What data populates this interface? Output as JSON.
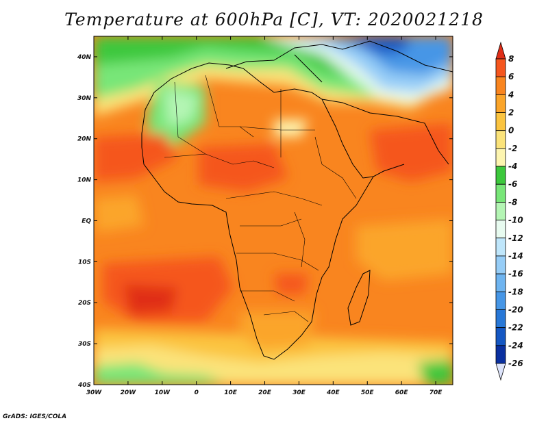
{
  "title": "Temperature at 600hPa [C], VT: 2020021218",
  "credit": "GrADS: IGES/COLA",
  "map": {
    "lon_labels": [
      "30W",
      "20W",
      "10W",
      "0",
      "10E",
      "20E",
      "30E",
      "40E",
      "50E",
      "60E",
      "70E"
    ],
    "lat_labels": [
      "40N",
      "30N",
      "20N",
      "10N",
      "EQ",
      "10S",
      "20S",
      "30S",
      "40S"
    ],
    "lon_range": [
      -30,
      75
    ],
    "lat_range": [
      -40,
      45
    ]
  },
  "colorbar": {
    "labels": [
      "8",
      "6",
      "4",
      "2",
      "0",
      "-2",
      "-4",
      "-6",
      "-8",
      "-10",
      "-12",
      "-14",
      "-16",
      "-18",
      "-20",
      "-22",
      "-24",
      "-26"
    ],
    "colors": [
      "#e02e18",
      "#f5561e",
      "#f9851f",
      "#fba52a",
      "#fbc440",
      "#fbe37a",
      "#fdf5b0",
      "#3cc83c",
      "#78e678",
      "#b4f5b4",
      "#e8fbf0",
      "#bfe6fb",
      "#96cdf7",
      "#6eb4f0",
      "#4696e6",
      "#2878d7",
      "#1457c3",
      "#0a30a0",
      "#050f78"
    ]
  }
}
